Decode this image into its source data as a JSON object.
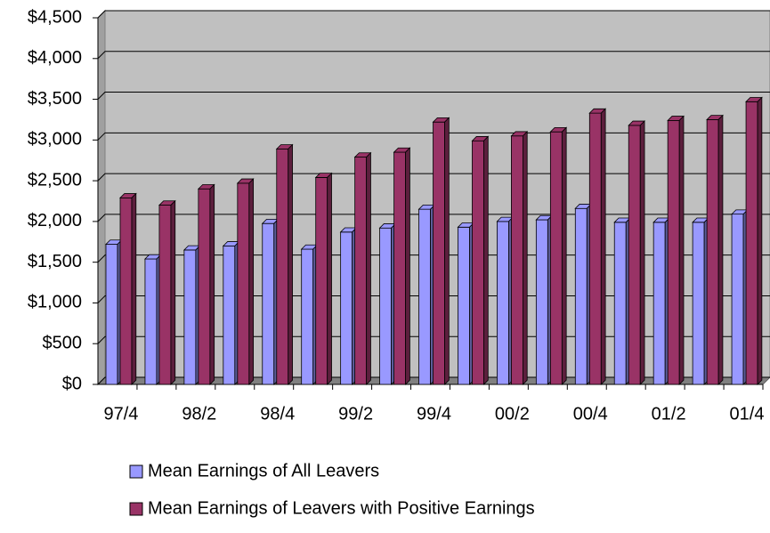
{
  "chart_data": {
    "type": "bar",
    "categories": [
      "97/4",
      null,
      "98/2",
      null,
      "98/4",
      null,
      "99/2",
      null,
      "99/4",
      null,
      "00/2",
      null,
      "00/4",
      null,
      "01/2",
      null,
      "01/4"
    ],
    "series": [
      {
        "name": "Mean Earnings of All Leavers",
        "color": "#9999ff",
        "values": [
          1720,
          1540,
          1650,
          1700,
          1975,
          1660,
          1870,
          1920,
          2150,
          1930,
          2000,
          2020,
          2160,
          1990,
          1990,
          1990,
          2090
        ]
      },
      {
        "name": "Mean Earnings of Leavers with Positive Earnings",
        "color": "#993366",
        "values": [
          2290,
          2200,
          2400,
          2470,
          2890,
          2540,
          2790,
          2850,
          3220,
          2990,
          3050,
          3100,
          3330,
          3180,
          3240,
          3250,
          3470
        ]
      }
    ],
    "ylim": [
      0,
      4500
    ],
    "yticks": [
      {
        "value": 0,
        "label": "$0"
      },
      {
        "value": 500,
        "label": "$500"
      },
      {
        "value": 1000,
        "label": "$1,000"
      },
      {
        "value": 1500,
        "label": "$1,500"
      },
      {
        "value": 2000,
        "label": "$2,000"
      },
      {
        "value": 2500,
        "label": "$2,500"
      },
      {
        "value": 3000,
        "label": "$3,000"
      },
      {
        "value": 3500,
        "label": "$3,500"
      },
      {
        "value": 4000,
        "label": "$4,000"
      },
      {
        "value": 4500,
        "label": "$4,500"
      }
    ],
    "grid": true
  }
}
